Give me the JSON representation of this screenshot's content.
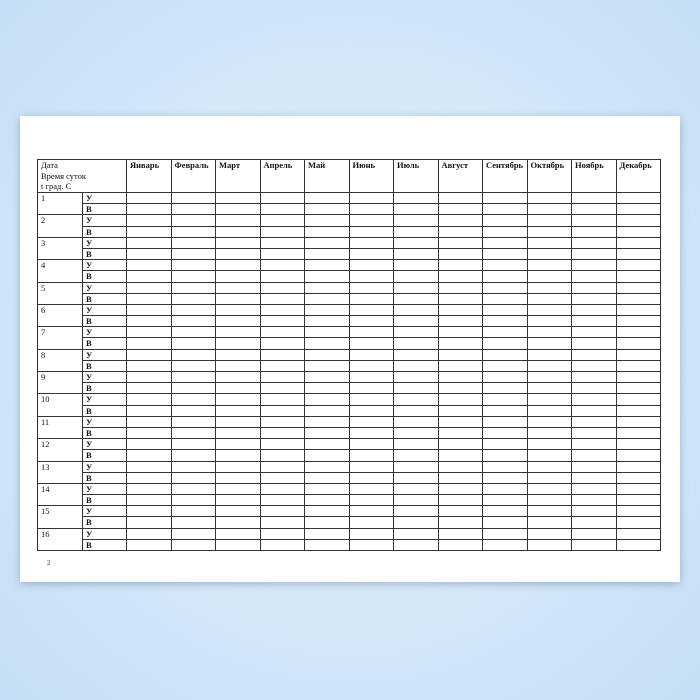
{
  "table": {
    "corner": [
      "Дата",
      "Время суток",
      "t град. С"
    ],
    "months": [
      "Январь",
      "Февраль",
      "Март",
      "Апрель",
      "Май",
      "Июнь",
      "Июль",
      "Август",
      "Сентябрь",
      "Октябрь",
      "Ноябрь",
      "Декабрь"
    ],
    "days": [
      "1",
      "2",
      "3",
      "4",
      "5",
      "6",
      "7",
      "8",
      "9",
      "10",
      "11",
      "12",
      "13",
      "14",
      "15",
      "16"
    ],
    "times": [
      "У",
      "В"
    ]
  },
  "page_number": "2"
}
